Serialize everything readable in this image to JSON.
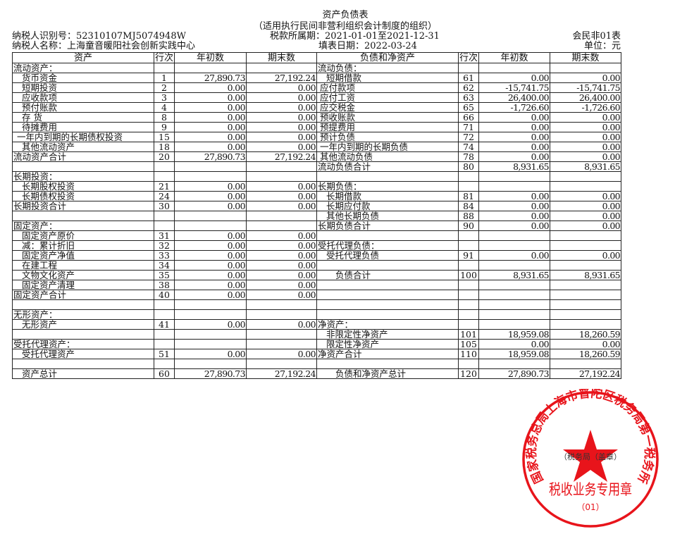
{
  "header": {
    "title": "资产负债表",
    "subtitle": "（适用执行民间非营利组织会计制度的组织）",
    "taxpayer_id": "纳税人识别号：52310107MJ5074948W",
    "taxpayer_name": "纳税人名称：上海童音暖阳社会创新实践中心",
    "tax_period": "税款所属期：2021-01-01至2021-12-31",
    "fill_date": "填表日期：2022-03-24",
    "form_no": "会民非01表",
    "unit": "单位：元"
  },
  "columns": {
    "assets": "资产",
    "line_no": "行次",
    "beginning": "年初数",
    "ending": "期末数",
    "liabilities": "负债和净资产"
  },
  "left_rows": [
    {
      "item": "流动资产：",
      "line": "",
      "begin": "",
      "end": ""
    },
    {
      "item": "货币资金",
      "line": "1",
      "begin": "27,890.73",
      "end": "27,192.24"
    },
    {
      "item": "短期投资",
      "line": "2",
      "begin": "0.00",
      "end": "0.00"
    },
    {
      "item": "应收款项",
      "line": "3",
      "begin": "0.00",
      "end": "0.00"
    },
    {
      "item": "预付账款",
      "line": "4",
      "begin": "0.00",
      "end": "0.00"
    },
    {
      "item": "存 货",
      "line": "8",
      "begin": "0.00",
      "end": "0.00"
    },
    {
      "item": "待摊费用",
      "line": "9",
      "begin": "0.00",
      "end": "0.00"
    },
    {
      "item": "一年内到期的长期债权投资",
      "line": "15",
      "begin": "0.00",
      "end": "0.00"
    },
    {
      "item": "其他流动资产",
      "line": "18",
      "begin": "0.00",
      "end": "0.00"
    },
    {
      "item": "流动资产合计",
      "line": "20",
      "begin": "27,890.73",
      "end": "27,192.24"
    },
    {
      "item": "",
      "line": "",
      "begin": "",
      "end": ""
    },
    {
      "item": "长期投资：",
      "line": "",
      "begin": "",
      "end": ""
    },
    {
      "item": "长期股权投资",
      "line": "21",
      "begin": "0.00",
      "end": "0.00"
    },
    {
      "item": "长期债权投资",
      "line": "24",
      "begin": "0.00",
      "end": "0.00"
    },
    {
      "item": "长期投资合计",
      "line": "30",
      "begin": "0.00",
      "end": "0.00"
    },
    {
      "item": "",
      "line": "",
      "begin": "",
      "end": ""
    },
    {
      "item": "固定资产：",
      "line": "",
      "begin": "",
      "end": ""
    },
    {
      "item": "固定资产原价",
      "line": "31",
      "begin": "0.00",
      "end": "0.00"
    },
    {
      "item": "减：累计折旧",
      "line": "32",
      "begin": "0.00",
      "end": "0.00"
    },
    {
      "item": "固定资产净值",
      "line": "33",
      "begin": "0.00",
      "end": "0.00"
    },
    {
      "item": "在建工程",
      "line": "34",
      "begin": "0.00",
      "end": "0.00"
    },
    {
      "item": "文物文化资产",
      "line": "35",
      "begin": "0.00",
      "end": "0.00"
    },
    {
      "item": "固定资产清理",
      "line": "38",
      "begin": "0.00",
      "end": "0.00"
    },
    {
      "item": "固定资产合计",
      "line": "40",
      "begin": "0.00",
      "end": "0.00"
    },
    {
      "item": "",
      "line": "",
      "begin": "",
      "end": ""
    },
    {
      "item": "无形资产：",
      "line": "",
      "begin": "",
      "end": ""
    },
    {
      "item": "无形资产",
      "line": "41",
      "begin": "0.00",
      "end": "0.00"
    },
    {
      "item": "",
      "line": "",
      "begin": "",
      "end": ""
    },
    {
      "item": "受托代理资产：",
      "line": "",
      "begin": "",
      "end": ""
    },
    {
      "item": "受托代理资产",
      "line": "51",
      "begin": "0.00",
      "end": "0.00"
    },
    {
      "item": "",
      "line": "",
      "begin": "",
      "end": ""
    },
    {
      "item": "资产总计",
      "line": "60",
      "begin": "27,890.73",
      "end": "27,192.24"
    }
  ],
  "right_rows": [
    {
      "item": "流动负债：",
      "line": "",
      "begin": "",
      "end": ""
    },
    {
      "item": "短期借款",
      "line": "61",
      "begin": "0.00",
      "end": "0.00"
    },
    {
      "item": "应付款项",
      "line": "62",
      "begin": "-15,741.75",
      "end": "-15,741.75"
    },
    {
      "item": "应付工资",
      "line": "63",
      "begin": "26,400.00",
      "end": "26,400.00"
    },
    {
      "item": "应交税金",
      "line": "65",
      "begin": "-1,726.60",
      "end": "-1,726.60"
    },
    {
      "item": "预收账款",
      "line": "66",
      "begin": "0.00",
      "end": "0.00"
    },
    {
      "item": "预提费用",
      "line": "71",
      "begin": "0.00",
      "end": "0.00"
    },
    {
      "item": "预计负债",
      "line": "72",
      "begin": "0.00",
      "end": "0.00"
    },
    {
      "item": "一年内到期的长期负债",
      "line": "74",
      "begin": "0.00",
      "end": "0.00"
    },
    {
      "item": "其他流动负债",
      "line": "78",
      "begin": "0.00",
      "end": "0.00"
    },
    {
      "item": "流动负债合计",
      "line": "80",
      "begin": "8,931.65",
      "end": "8,931.65"
    },
    {
      "item": "",
      "line": "",
      "begin": "",
      "end": ""
    },
    {
      "item": "长期负债：",
      "line": "",
      "begin": "",
      "end": ""
    },
    {
      "item": "长期借款",
      "line": "81",
      "begin": "0.00",
      "end": "0.00"
    },
    {
      "item": "长期应付款",
      "line": "84",
      "begin": "0.00",
      "end": "0.00"
    },
    {
      "item": "其他长期负债",
      "line": "88",
      "begin": "0.00",
      "end": "0.00"
    },
    {
      "item": "长期负债合计",
      "line": "90",
      "begin": "0.00",
      "end": "0.00"
    },
    {
      "item": "",
      "line": "",
      "begin": "",
      "end": ""
    },
    {
      "item": "受托代理负债：",
      "line": "",
      "begin": "",
      "end": ""
    },
    {
      "item": "受托代理负债",
      "line": "91",
      "begin": "0.00",
      "end": "0.00"
    },
    {
      "item": "",
      "line": "",
      "begin": "",
      "end": ""
    },
    {
      "item": "负债合计",
      "line": "100",
      "begin": "8,931.65",
      "end": "8,931.65"
    },
    {
      "item": "",
      "line": "",
      "begin": "",
      "end": ""
    },
    {
      "item": "",
      "line": "",
      "begin": "",
      "end": ""
    },
    {
      "item": "",
      "line": "",
      "begin": "",
      "end": ""
    },
    {
      "item": "",
      "line": "",
      "begin": "",
      "end": ""
    },
    {
      "item": "净资产：",
      "line": "",
      "begin": "",
      "end": ""
    },
    {
      "item": "非限定性净资产",
      "line": "101",
      "begin": "18,959.08",
      "end": "18,260.59"
    },
    {
      "item": "限定性净资产",
      "line": "105",
      "begin": "0.00",
      "end": "0.00"
    },
    {
      "item": "净资产合计",
      "line": "110",
      "begin": "18,959.08",
      "end": "18,260.59"
    },
    {
      "item": "",
      "line": "",
      "begin": "",
      "end": ""
    },
    {
      "item": "负债和净资产总计",
      "line": "120",
      "begin": "27,890.73",
      "end": "27,192.24"
    }
  ],
  "stamp": {
    "arc_text": "国家税务总局上海市普陀区税务局第一税务所",
    "center_text": "（税务局（盖章）",
    "main_text": "税收业务专用章",
    "number": "（01）",
    "color": "#e8141b"
  }
}
